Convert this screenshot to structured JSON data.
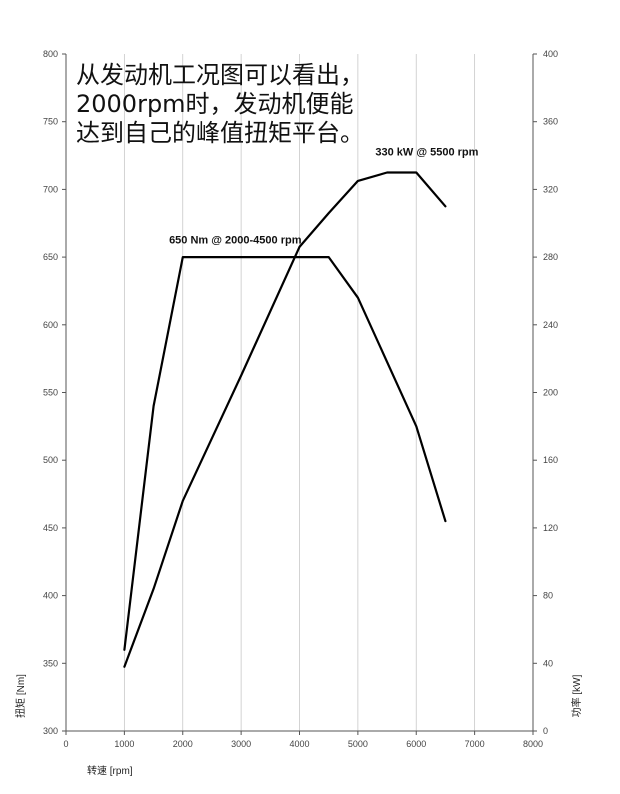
{
  "caption": [
    "从发动机工况图可以看出，",
    "2000rpm时，发动机便能",
    "达到自己的峰值扭矩平台。"
  ],
  "chart_data": {
    "type": "line",
    "x_axis": {
      "label": "转速 [rpm]",
      "range": [
        0,
        8000
      ],
      "ticks": [
        0,
        1000,
        2000,
        3000,
        4000,
        5000,
        6000,
        7000,
        8000
      ]
    },
    "y_axis_left": {
      "label": "扭矩 [Nm]",
      "range": [
        300,
        800
      ],
      "ticks": [
        300,
        350,
        400,
        450,
        500,
        550,
        600,
        650,
        700,
        750,
        800
      ]
    },
    "y_axis_right": {
      "label": "功率 [kW]",
      "range": [
        0,
        400
      ],
      "ticks": [
        0,
        40,
        80,
        120,
        160,
        200,
        240,
        280,
        320,
        360,
        400
      ]
    },
    "grid": "vertical",
    "series": [
      {
        "axis": "left",
        "color": "#000000",
        "points": [
          {
            "x": 1000,
            "y": 360
          },
          {
            "x": 1500,
            "y": 540
          },
          {
            "x": 2000,
            "y": 650
          },
          {
            "x": 4500,
            "y": 650
          },
          {
            "x": 5000,
            "y": 620
          },
          {
            "x": 6000,
            "y": 525
          },
          {
            "x": 6500,
            "y": 455
          }
        ]
      },
      {
        "axis": "right",
        "color": "#000000",
        "points": [
          {
            "x": 1000,
            "y": 38
          },
          {
            "x": 1500,
            "y": 84
          },
          {
            "x": 2000,
            "y": 136
          },
          {
            "x": 3000,
            "y": 210
          },
          {
            "x": 4000,
            "y": 286
          },
          {
            "x": 4500,
            "y": 306
          },
          {
            "x": 5000,
            "y": 325
          },
          {
            "x": 5500,
            "y": 330
          },
          {
            "x": 6000,
            "y": 330
          },
          {
            "x": 6500,
            "y": 310
          }
        ]
      }
    ],
    "annotations": [
      {
        "text": "650 Nm @ 2000-4500 rpm",
        "x": 2900,
        "y": 660,
        "axis": "left",
        "anchor": "middle"
      },
      {
        "text": "330 kW @ 5500 rpm",
        "x": 5300,
        "y": 340,
        "axis": "right",
        "anchor": "start"
      }
    ]
  }
}
